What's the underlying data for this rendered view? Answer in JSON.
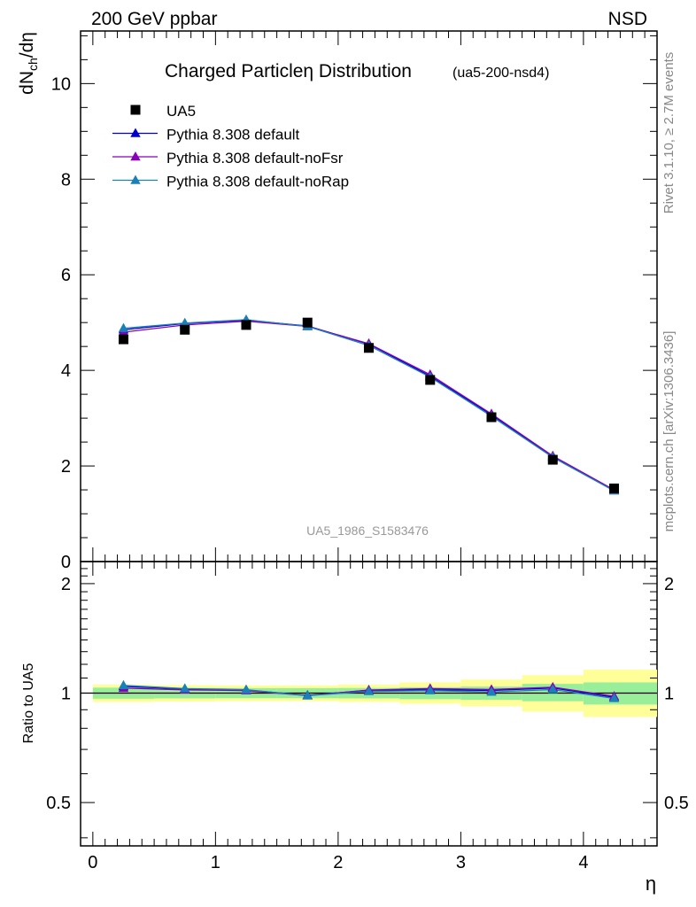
{
  "header": {
    "energy_label": "200 GeV ppbar",
    "process_label": "NSD"
  },
  "side_labels": {
    "rivet": "Rivet 3.1.10, ≥ 2.7M events",
    "source": "mcplots.cern.ch [arXiv:1306.3436]"
  },
  "chart_data": {
    "type": "line",
    "title": "Charged Particleη Distribution",
    "subtitle": "(ua5-200-nsd4)",
    "watermark": "UA5_1986_S1583476",
    "xlabel": "η",
    "ylabel_main": "dN_ch/dη",
    "ylabel_ratio": "Ratio to UA5",
    "xlim": [
      -0.1,
      4.6
    ],
    "ylim_main": [
      0,
      11.1
    ],
    "ylim_ratio": [
      0.38,
      2.3
    ],
    "ratio_log_scale": true,
    "x_ticks": [
      "0",
      "1",
      "2",
      "3",
      "4"
    ],
    "y_ticks_main": [
      "0",
      "2",
      "4",
      "6",
      "8",
      "10"
    ],
    "y_ticks_ratio": [
      "0.5",
      "1",
      "2"
    ],
    "legend_position": "top-left",
    "x": [
      0.25,
      0.75,
      1.25,
      1.75,
      2.25,
      2.75,
      3.25,
      3.75,
      4.25
    ],
    "reference": {
      "name": "UA5",
      "color": "#000000",
      "values": [
        4.65,
        4.85,
        4.95,
        5.0,
        4.47,
        3.8,
        3.02,
        2.13,
        1.53
      ]
    },
    "series": [
      {
        "name": "Pythia 8.308 default",
        "color": "#0000cc",
        "values": [
          4.85,
          4.98,
          5.05,
          4.93,
          4.55,
          3.88,
          3.07,
          2.2,
          1.49
        ],
        "ratio": [
          1.043,
          1.027,
          1.02,
          0.986,
          1.018,
          1.021,
          1.017,
          1.033,
          0.974
        ]
      },
      {
        "name": "Pythia 8.308 default-noFsr",
        "color": "#8800bb",
        "values": [
          4.8,
          4.95,
          5.03,
          4.92,
          4.56,
          3.91,
          3.09,
          2.21,
          1.5
        ],
        "ratio": [
          1.032,
          1.021,
          1.016,
          0.984,
          1.02,
          1.029,
          1.023,
          1.038,
          0.98
        ]
      },
      {
        "name": "Pythia 8.308 default-noRap",
        "color": "#1a80b8",
        "values": [
          4.88,
          4.99,
          5.06,
          4.92,
          4.52,
          3.86,
          3.04,
          2.18,
          1.48
        ],
        "ratio": [
          1.05,
          1.029,
          1.022,
          0.984,
          1.011,
          1.016,
          1.007,
          1.023,
          0.967
        ]
      }
    ],
    "uncertainty_bands": {
      "x_edges": [
        0.0,
        0.5,
        1.0,
        1.5,
        2.0,
        2.5,
        3.0,
        3.5,
        4.0,
        4.6
      ],
      "inner_color": "#99ee99",
      "outer_color": "#ffff99",
      "inner": [
        [
          0.965,
          1.035
        ],
        [
          0.967,
          1.033
        ],
        [
          0.968,
          1.032
        ],
        [
          0.968,
          1.032
        ],
        [
          0.967,
          1.033
        ],
        [
          0.962,
          1.038
        ],
        [
          0.958,
          1.042
        ],
        [
          0.95,
          1.06
        ],
        [
          0.93,
          1.07
        ]
      ],
      "outer": [
        [
          0.945,
          1.055
        ],
        [
          0.948,
          1.052
        ],
        [
          0.95,
          1.05
        ],
        [
          0.95,
          1.05
        ],
        [
          0.945,
          1.055
        ],
        [
          0.935,
          1.07
        ],
        [
          0.92,
          1.09
        ],
        [
          0.89,
          1.12
        ],
        [
          0.86,
          1.16
        ]
      ]
    }
  }
}
